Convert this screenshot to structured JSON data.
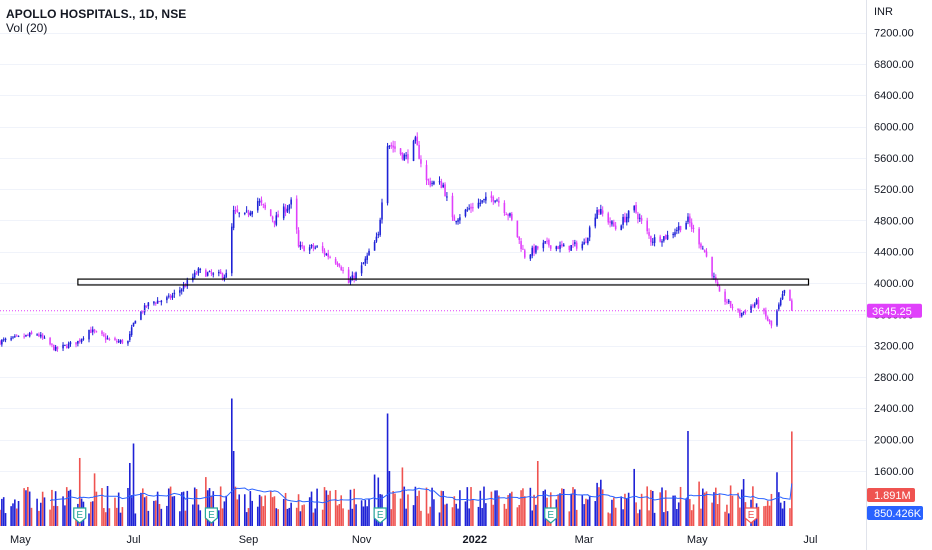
{
  "header": {
    "symbol_title": "APOLLO HOSPITALS., 1D, NSE",
    "volume_label": "Vol (20)"
  },
  "price_axis": {
    "currency": "INR",
    "ticks": [
      "7200.00",
      "6800.00",
      "6400.00",
      "6000.00",
      "5600.00",
      "5200.00",
      "4800.00",
      "4400.00",
      "4000.00",
      "3600.00",
      "3200.00",
      "2800.00",
      "2400.00",
      "2000.00",
      "1600.00"
    ]
  },
  "time_axis": {
    "ticks": [
      "May",
      "Jul",
      "Sep",
      "Nov",
      "2022",
      "Mar",
      "May",
      "Jul"
    ]
  },
  "badges": {
    "last_price": "3645.25",
    "last_volume": "1.891M",
    "volume_ma": "850.426K"
  },
  "colors": {
    "up": "#1e22d6",
    "down": "#e040fb",
    "vol_up": "#1e22d6",
    "vol_down": "#ef5350",
    "vol_ma": "#2962ff",
    "price_line": "#e040fb",
    "earnings_badge": "#26a69a",
    "earnings_badge_recent": "#ef5350"
  },
  "chart_data": {
    "type": "candlestick",
    "title": "APOLLO HOSPITALS., 1D, NSE",
    "ylabel": "INR",
    "ylim": [
      1300,
      7450
    ],
    "x_range": [
      "2021-04-20",
      "2022-07-31"
    ],
    "price_control_points": [
      [
        "2021-04-20",
        3250
      ],
      [
        "2021-04-30",
        3300
      ],
      [
        "2021-05-10",
        3350
      ],
      [
        "2021-05-20",
        3150
      ],
      [
        "2021-06-01",
        3250
      ],
      [
        "2021-06-07",
        3400
      ],
      [
        "2021-06-20",
        3250
      ],
      [
        "2021-06-28",
        3250
      ],
      [
        "2021-07-02",
        3550
      ],
      [
        "2021-07-10",
        3750
      ],
      [
        "2021-07-20",
        3800
      ],
      [
        "2021-07-28",
        3950
      ],
      [
        "2021-08-05",
        4150
      ],
      [
        "2021-08-13",
        4100
      ],
      [
        "2021-08-20",
        4100
      ],
      [
        "2021-08-24",
        4900
      ],
      [
        "2021-08-30",
        4850
      ],
      [
        "2021-09-06",
        5050
      ],
      [
        "2021-09-15",
        4800
      ],
      [
        "2021-09-25",
        5050
      ],
      [
        "2021-09-28",
        4450
      ],
      [
        "2021-10-08",
        4450
      ],
      [
        "2021-10-20",
        4250
      ],
      [
        "2021-10-25",
        4000
      ],
      [
        "2021-11-01",
        4200
      ],
      [
        "2021-11-10",
        4600
      ],
      [
        "2021-11-15",
        5800
      ],
      [
        "2021-11-25",
        5600
      ],
      [
        "2021-11-30",
        5800
      ],
      [
        "2021-12-06",
        5300
      ],
      [
        "2021-12-15",
        5250
      ],
      [
        "2021-12-20",
        4800
      ],
      [
        "2022-01-01",
        5000
      ],
      [
        "2022-01-12",
        5100
      ],
      [
        "2022-01-20",
        4850
      ],
      [
        "2022-01-28",
        4350
      ],
      [
        "2022-02-08",
        4500
      ],
      [
        "2022-02-18",
        4450
      ],
      [
        "2022-03-01",
        4500
      ],
      [
        "2022-03-08",
        4950
      ],
      [
        "2022-03-18",
        4700
      ],
      [
        "2022-03-28",
        4950
      ],
      [
        "2022-04-06",
        4550
      ],
      [
        "2022-04-15",
        4600
      ],
      [
        "2022-04-26",
        4800
      ],
      [
        "2022-05-05",
        4400
      ],
      [
        "2022-05-13",
        3850
      ],
      [
        "2022-05-24",
        3600
      ],
      [
        "2022-06-02",
        3750
      ],
      [
        "2022-06-10",
        3450
      ],
      [
        "2022-06-18",
        3950
      ],
      [
        "2022-06-21",
        3645
      ]
    ],
    "last_close": 3645.25,
    "volume_highlights": [
      [
        "2021-07-01",
        1650000
      ],
      [
        "2021-07-20",
        750000
      ],
      [
        "2021-08-23",
        2550000
      ],
      [
        "2021-08-24",
        1500000
      ],
      [
        "2021-11-15",
        2250000
      ],
      [
        "2021-11-16",
        1100000
      ],
      [
        "2022-02-04",
        1300000
      ],
      [
        "2022-04-26",
        1900000
      ],
      [
        "2022-06-21",
        1891000
      ]
    ],
    "earnings_dates": [
      "2021-06-02",
      "2021-08-12",
      "2021-11-11",
      "2022-02-11",
      "2022-05-30"
    ],
    "last_volume": 1891000,
    "volume_ma_last": 850426,
    "annotations": [
      {
        "type": "rectangle",
        "from": "2021-06-01",
        "to": "2022-06-30",
        "price_range": [
          3975,
          4050
        ]
      }
    ]
  }
}
